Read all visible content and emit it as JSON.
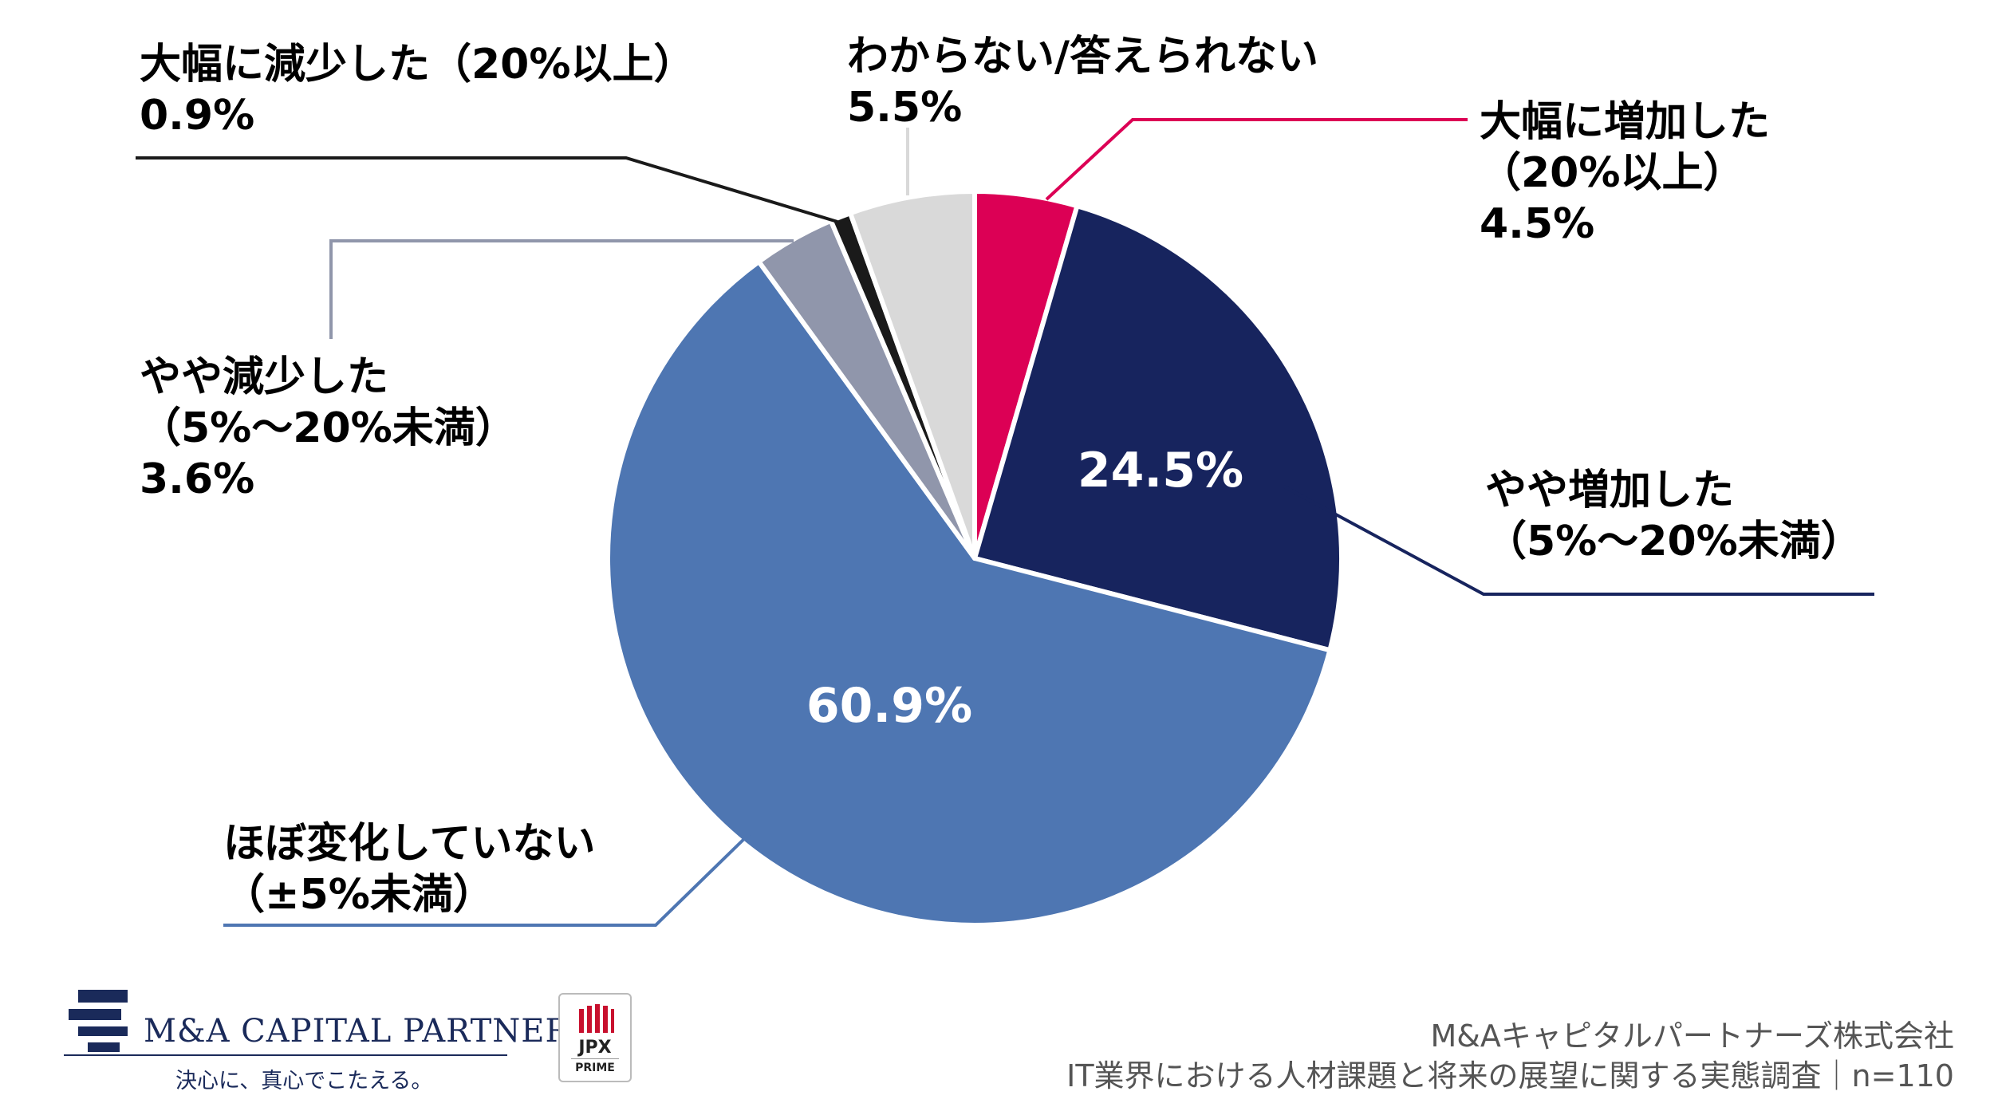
{
  "chart_data": {
    "type": "pie",
    "n": "n=110",
    "slices": [
      {
        "label_lines": [
          "大幅に増加した",
          "（20%以上）"
        ],
        "value_label": "4.5%",
        "value": 4.5,
        "color": "#dc0055"
      },
      {
        "label_lines": [
          "やや増加した",
          "（5%〜20%未満）"
        ],
        "value_label": "24.5%",
        "value": 24.5,
        "color": "#17245e"
      },
      {
        "label_lines": [
          "ほぼ変化していない",
          "（±5%未満）"
        ],
        "value_label": "60.9%",
        "value": 60.9,
        "color": "#4e76b2"
      },
      {
        "label_lines": [
          "やや減少した",
          "（5%〜20%未満）"
        ],
        "value_label": "3.6%",
        "value": 3.6,
        "color": "#9096ab"
      },
      {
        "label_lines": [
          "大幅に減少した（20%以上）"
        ],
        "value_label": "0.9%",
        "value": 0.9,
        "color": "#1a1a1a"
      },
      {
        "label_lines": [
          "わからない/答えられない"
        ],
        "value_label": "5.5%",
        "value": 5.5,
        "color": "#d9d9d9"
      }
    ]
  },
  "footer": {
    "company_logo_text": "M&A CAPITAL PARTNERS",
    "company_tagline": "決心に、真心でこたえる。",
    "jpx_text": "JPX",
    "jpx_sub": "PRIME",
    "source_line1": "M&Aキャピタルパートナーズ株式会社",
    "source_line2": "IT業界における人材課題と将来の展望に関する実態調査｜n=110"
  }
}
